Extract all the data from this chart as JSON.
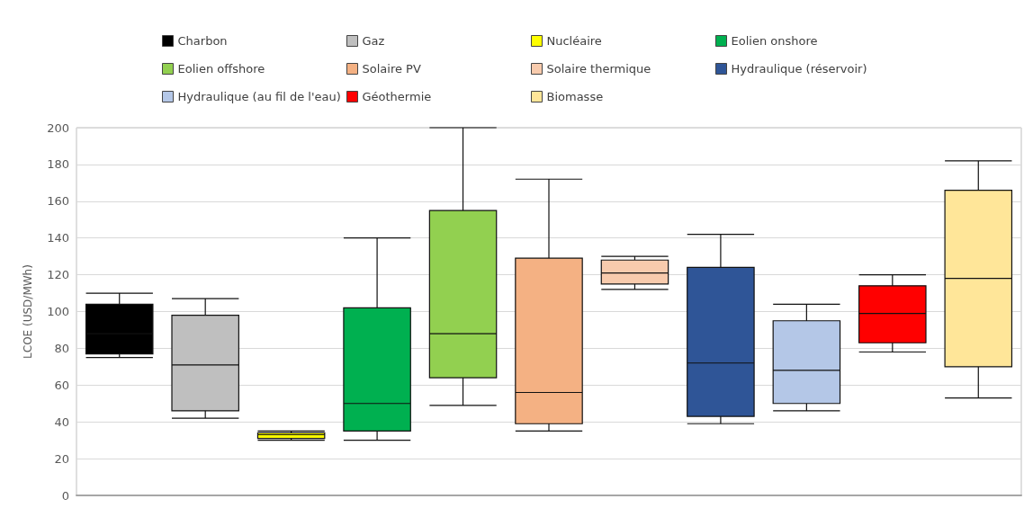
{
  "chart_data": {
    "type": "box",
    "ylabel": "LCOE (USD/MWh)",
    "categories": [
      null,
      null,
      null,
      null,
      null,
      null,
      null,
      null,
      null,
      null,
      null
    ],
    "ylim": [
      0,
      200
    ],
    "yticks": [
      0,
      20,
      40,
      60,
      80,
      100,
      120,
      140,
      160,
      180,
      200
    ],
    "grid": "y",
    "legend": "top",
    "series": [
      {
        "name": "Charbon",
        "color": "#000000",
        "boxes": [
          {
            "low": 75,
            "q1": 77,
            "median": 88,
            "q3": 104,
            "high": 110
          },
          null,
          null,
          null,
          null,
          null,
          null,
          null,
          null,
          null,
          null
        ]
      },
      {
        "name": "Gaz",
        "color": "#bfbfbf",
        "boxes": [
          null,
          {
            "low": 42,
            "q1": 46,
            "median": 71,
            "q3": 98,
            "high": 107
          },
          null,
          null,
          null,
          null,
          null,
          null,
          null,
          null,
          null
        ]
      },
      {
        "name": "Nucléaire",
        "color": "#ffff00",
        "boxes": [
          null,
          null,
          {
            "low": 30,
            "q1": 31,
            "median": 33,
            "q3": 34,
            "high": 35
          },
          null,
          null,
          null,
          null,
          null,
          null,
          null,
          null
        ]
      },
      {
        "name": "Eolien onshore",
        "color": "#00b050",
        "boxes": [
          null,
          null,
          null,
          {
            "low": 30,
            "q1": 35,
            "median": 50,
            "q3": 102,
            "high": 140
          },
          null,
          null,
          null,
          null,
          null,
          null,
          null
        ]
      },
      {
        "name": "Eolien offshore",
        "color": "#92d050",
        "boxes": [
          null,
          null,
          null,
          null,
          {
            "low": 49,
            "q1": 64,
            "median": 88,
            "q3": 155,
            "high": 200
          },
          null,
          null,
          null,
          null,
          null,
          null
        ]
      },
      {
        "name": "Solaire PV",
        "color": "#f4b183",
        "boxes": [
          null,
          null,
          null,
          null,
          null,
          {
            "low": 35,
            "q1": 39,
            "median": 56,
            "q3": 129,
            "high": 172
          },
          null,
          null,
          null,
          null,
          null
        ]
      },
      {
        "name": "Solaire thermique",
        "color": "#f8cbad",
        "boxes": [
          null,
          null,
          null,
          null,
          null,
          null,
          {
            "low": 112,
            "q1": 115,
            "median": 121,
            "q3": 128,
            "high": 130
          },
          null,
          null,
          null,
          null
        ]
      },
      {
        "name": "Hydraulique (réservoir)",
        "color": "#2f5597",
        "boxes": [
          null,
          null,
          null,
          null,
          null,
          null,
          null,
          {
            "low": 39,
            "q1": 43,
            "median": 72,
            "q3": 124,
            "high": 142
          },
          null,
          null,
          null
        ]
      },
      {
        "name": "Hydraulique (au fil de l'eau)",
        "color": "#b4c7e7",
        "boxes": [
          null,
          null,
          null,
          null,
          null,
          null,
          null,
          null,
          {
            "low": 46,
            "q1": 50,
            "median": 68,
            "q3": 95,
            "high": 104
          },
          null,
          null
        ]
      },
      {
        "name": "Géothermie",
        "color": "#ff0000",
        "boxes": [
          null,
          null,
          null,
          null,
          null,
          null,
          null,
          null,
          null,
          {
            "low": 78,
            "q1": 83,
            "median": 99,
            "q3": 114,
            "high": 120
          },
          null
        ]
      },
      {
        "name": "Biomasse",
        "color": "#ffe699",
        "boxes": [
          null,
          null,
          null,
          null,
          null,
          null,
          null,
          null,
          null,
          null,
          {
            "low": 53,
            "q1": 70,
            "median": 118,
            "q3": 166,
            "high": 182
          }
        ]
      }
    ]
  }
}
